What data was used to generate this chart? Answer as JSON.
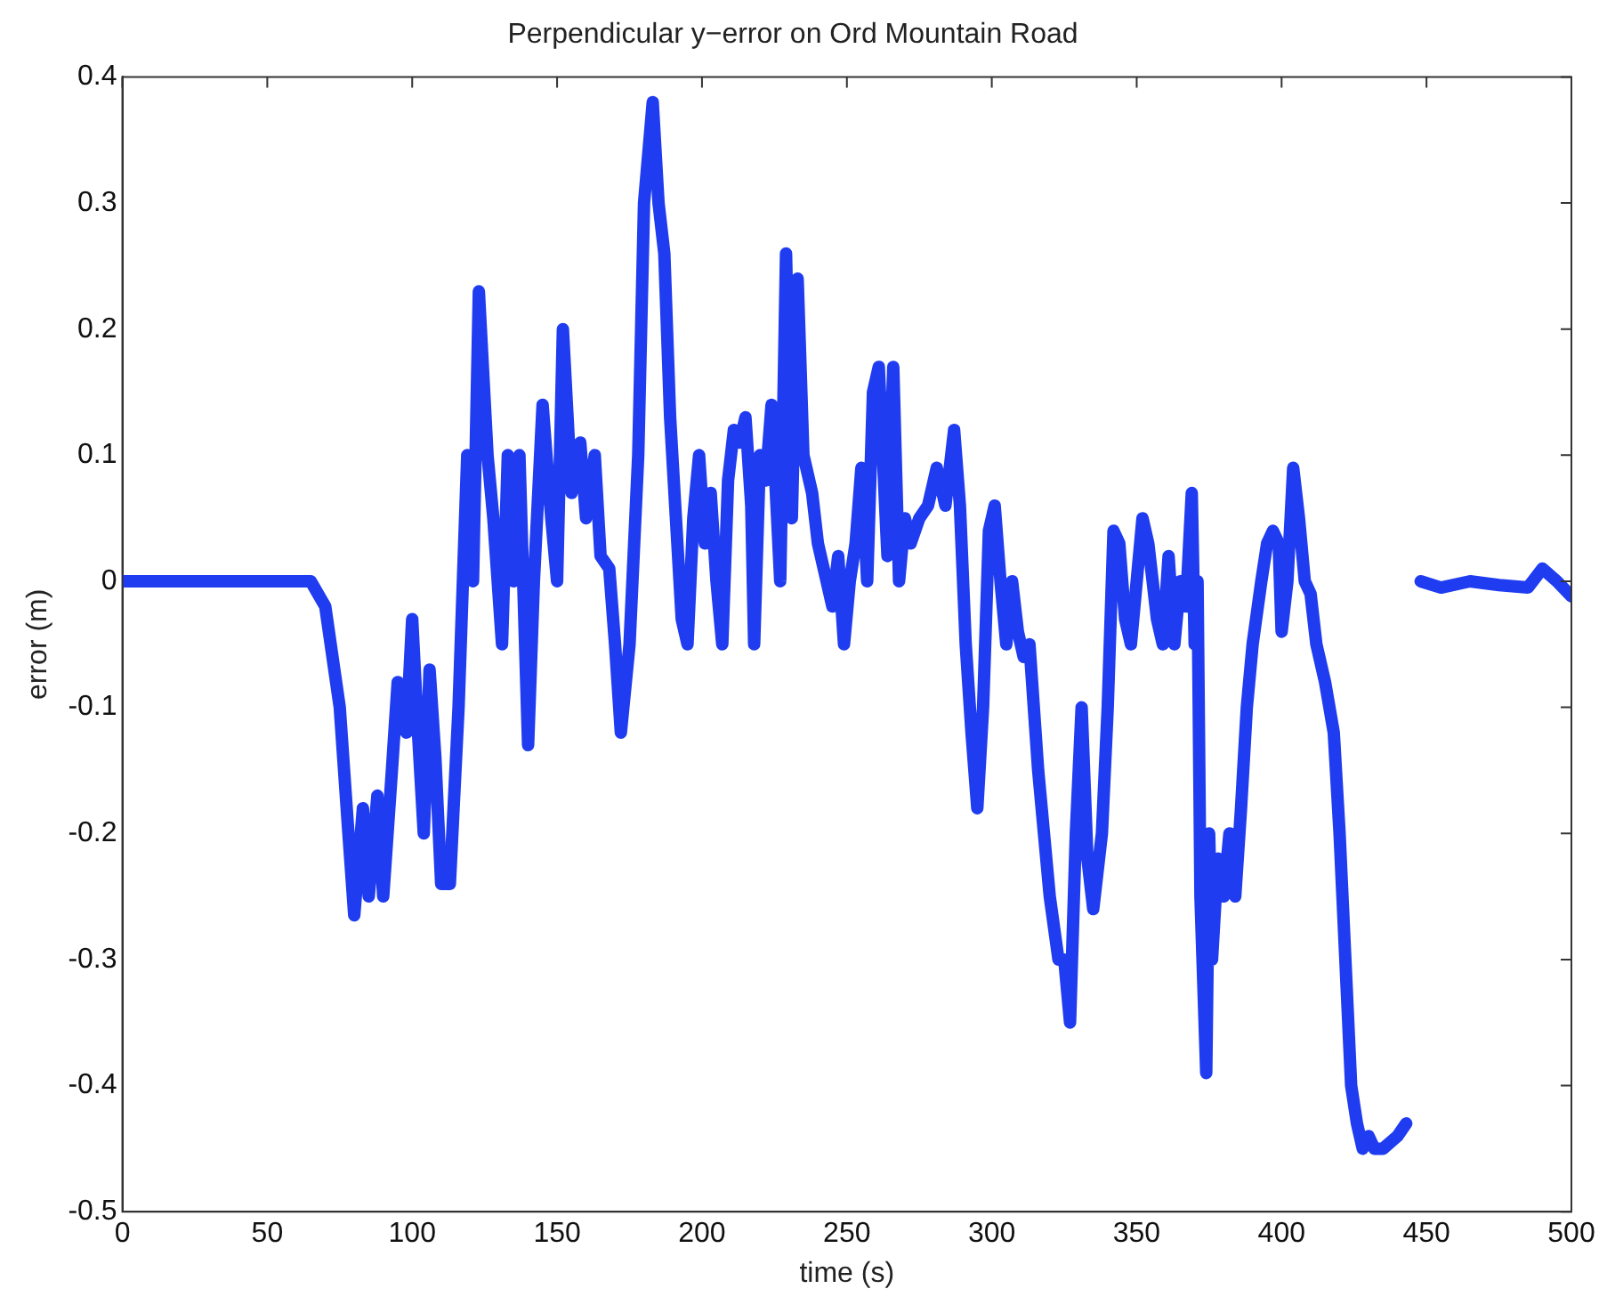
{
  "chart_data": {
    "type": "line",
    "title": "Perpendicular y−error on Ord Mountain Road",
    "xlabel": "time (s)",
    "ylabel": "error (m)",
    "x": [
      0,
      20,
      40,
      65,
      70,
      75,
      78,
      80,
      83,
      85,
      88,
      90,
      93,
      95,
      98,
      100,
      102,
      104,
      106,
      108,
      110,
      113,
      116,
      119,
      121,
      123,
      126,
      128,
      131,
      133,
      135,
      137,
      140,
      142,
      145,
      148,
      150,
      152,
      155,
      158,
      160,
      163,
      165,
      168,
      170,
      172,
      175,
      178,
      180,
      183,
      185,
      187,
      189,
      191,
      193,
      195,
      197,
      199,
      201,
      203,
      205,
      207,
      209,
      211,
      213,
      215,
      217,
      218,
      220,
      222,
      224,
      227,
      229,
      231,
      233,
      235,
      238,
      240,
      243,
      245,
      247,
      249,
      251,
      253,
      255,
      257,
      259,
      261,
      264,
      266,
      268,
      270,
      272,
      275,
      278,
      281,
      284,
      287,
      289,
      291,
      293,
      295,
      297,
      299,
      301,
      303,
      305,
      307,
      309,
      311,
      313,
      316,
      320,
      323,
      325,
      327,
      329,
      331,
      333,
      335,
      338,
      340,
      342,
      344,
      346,
      348,
      350,
      352,
      354,
      357,
      359,
      361,
      363,
      365,
      367,
      369,
      370,
      371,
      372,
      374,
      375,
      376,
      378,
      380,
      382,
      384,
      386,
      388,
      390,
      393,
      395,
      397,
      399,
      400,
      402,
      404,
      406,
      408,
      410,
      412,
      415,
      418,
      420,
      422,
      424,
      426,
      428,
      430,
      432,
      435,
      440,
      443,
      445,
      448,
      455,
      465,
      475,
      485,
      490,
      495,
      500
    ],
    "series": [
      {
        "color": "#1f3cf0",
        "values": [
          0,
          0,
          0,
          0,
          -0.02,
          -0.1,
          -0.2,
          -0.265,
          -0.18,
          -0.25,
          -0.17,
          -0.25,
          -0.15,
          -0.08,
          -0.12,
          -0.03,
          -0.12,
          -0.2,
          -0.07,
          -0.14,
          -0.24,
          -0.24,
          -0.1,
          0.1,
          0,
          0.23,
          0.1,
          0.05,
          -0.05,
          0.1,
          0,
          0.1,
          -0.13,
          0,
          0.14,
          0.05,
          0,
          0.2,
          0.07,
          0.11,
          0.05,
          0.1,
          0.02,
          0.01,
          -0.05,
          -0.12,
          -0.05,
          0.1,
          0.3,
          0.38,
          0.3,
          0.26,
          0.13,
          0.05,
          -0.03,
          -0.05,
          0.05,
          0.1,
          0.03,
          0.07,
          0,
          -0.05,
          0.08,
          0.12,
          0.11,
          0.13,
          0.06,
          -0.05,
          0.1,
          0.08,
          0.14,
          0,
          0.26,
          0.05,
          0.24,
          0.1,
          0.07,
          0.03,
          0,
          -0.02,
          0.02,
          -0.05,
          0,
          0.03,
          0.09,
          0,
          0.15,
          0.17,
          0.02,
          0.17,
          0,
          0.05,
          0.03,
          0.05,
          0.06,
          0.09,
          0.06,
          0.12,
          0.06,
          -0.05,
          -0.12,
          -0.18,
          -0.1,
          0.04,
          0.06,
          0,
          -0.05,
          0,
          -0.04,
          -0.06,
          -0.05,
          -0.15,
          -0.25,
          -0.3,
          -0.3,
          -0.35,
          -0.2,
          -0.1,
          -0.22,
          -0.26,
          -0.2,
          -0.1,
          0.04,
          0.03,
          -0.03,
          -0.05,
          0,
          0.05,
          0.03,
          -0.03,
          -0.05,
          0.02,
          -0.05,
          0,
          -0.02,
          0.07,
          -0.05,
          0,
          -0.25,
          -0.39,
          -0.2,
          -0.3,
          -0.22,
          -0.25,
          -0.2,
          -0.25,
          -0.18,
          -0.1,
          -0.05,
          0,
          0.03,
          0.04,
          0.03,
          -0.04,
          0,
          0.09,
          0.05,
          0,
          -0.01,
          -0.05,
          -0.08,
          -0.12,
          -0.2,
          -0.3,
          -0.4,
          -0.43,
          -0.45,
          -0.44,
          -0.45,
          -0.45,
          -0.44,
          -0.43,
          null,
          0,
          -0.005,
          0,
          -0.003,
          -0.005,
          0.01,
          0,
          -0.012
        ]
      }
    ],
    "xlim": [
      0,
      500
    ],
    "xticks": [
      0,
      50,
      100,
      150,
      200,
      250,
      300,
      350,
      400,
      450,
      500
    ],
    "ylim": [
      -0.5,
      0.4
    ],
    "yticks": [
      -0.5,
      -0.4,
      -0.3,
      -0.2,
      -0.1,
      0,
      0.1,
      0.2,
      0.3,
      0.4
    ],
    "grid": false,
    "legend": false,
    "marker": "none",
    "line_style": "solid"
  }
}
